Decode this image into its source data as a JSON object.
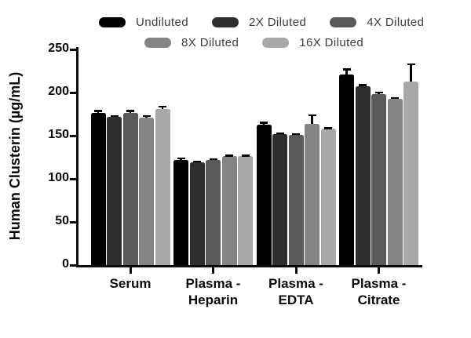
{
  "chart_data": {
    "type": "bar",
    "title": "",
    "xlabel": "",
    "ylabel": "Human Clusterin (µg/mL)",
    "ylim": [
      0,
      250
    ],
    "yticks": [
      0,
      50,
      100,
      150,
      200,
      250
    ],
    "grid": false,
    "legend_position": "top",
    "background_color": "#ffffff",
    "axis_color": "#0a0a0a",
    "error_bar_color": "#000000",
    "categories": [
      "Serum",
      "Plasma - Heparin",
      "Plasma - EDTA",
      "Plasma - Citrate"
    ],
    "series": [
      {
        "name": "Undiluted",
        "color": "#000000",
        "values": [
          176,
          122,
          163,
          221
        ],
        "errors": [
          4,
          3,
          3,
          7
        ]
      },
      {
        "name": "2X Diluted",
        "color": "#2e2e2e",
        "values": [
          172,
          119,
          152,
          207
        ],
        "errors": [
          2,
          2,
          2,
          3
        ]
      },
      {
        "name": "4X Diluted",
        "color": "#595959",
        "values": [
          176,
          122,
          151,
          198
        ],
        "errors": [
          4,
          2,
          2,
          3
        ]
      },
      {
        "name": "8X Diluted",
        "color": "#848484",
        "values": [
          171,
          126,
          164,
          193
        ],
        "errors": [
          3,
          2,
          11,
          2
        ]
      },
      {
        "name": "16X Diluted",
        "color": "#a9a9a9",
        "values": [
          181,
          126,
          158,
          213
        ],
        "errors": [
          4,
          2,
          2,
          21
        ]
      }
    ]
  }
}
